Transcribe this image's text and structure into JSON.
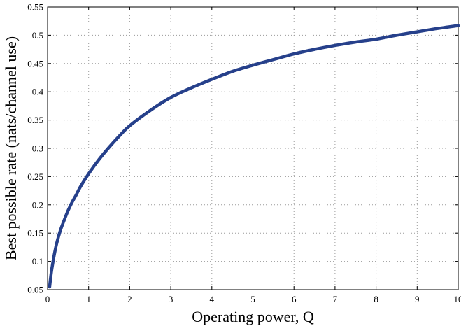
{
  "chart_data": {
    "type": "line",
    "title": "",
    "xlabel": "Operating power, Q",
    "ylabel": "Best possible rate (nats/channel use)",
    "xlim": [
      0,
      10
    ],
    "ylim": [
      0.05,
      0.55
    ],
    "xticks": [
      0,
      1,
      2,
      3,
      4,
      5,
      6,
      7,
      8,
      9,
      10
    ],
    "xtick_labels": [
      "0",
      "1",
      "2",
      "3",
      "4",
      "5",
      "6",
      "7",
      "8",
      "9",
      "10"
    ],
    "yticks": [
      0.05,
      0.1,
      0.15,
      0.2,
      0.25,
      0.3,
      0.35,
      0.4,
      0.45,
      0.5,
      0.55
    ],
    "ytick_labels": [
      "0.05",
      "0.1",
      "0.15",
      "0.2",
      "0.25",
      "0.3",
      "0.35",
      "0.4",
      "0.45",
      "0.5",
      "0.55"
    ],
    "grid": true,
    "series": [
      {
        "color": "#26408b",
        "x": [
          0.05,
          0.1,
          0.2,
          0.3,
          0.4,
          0.5,
          0.6,
          0.7,
          0.8,
          1.0,
          1.25,
          1.5,
          1.75,
          2.0,
          2.5,
          3.0,
          3.5,
          4.0,
          4.5,
          5.0,
          5.5,
          6.0,
          6.5,
          7.0,
          7.5,
          8.0,
          8.5,
          9.0,
          9.5,
          10.0
        ],
        "y": [
          0.055,
          0.085,
          0.125,
          0.152,
          0.172,
          0.19,
          0.205,
          0.218,
          0.232,
          0.255,
          0.28,
          0.302,
          0.322,
          0.34,
          0.367,
          0.39,
          0.407,
          0.422,
          0.436,
          0.447,
          0.457,
          0.467,
          0.475,
          0.482,
          0.488,
          0.493,
          0.5,
          0.506,
          0.512,
          0.517
        ]
      }
    ]
  }
}
